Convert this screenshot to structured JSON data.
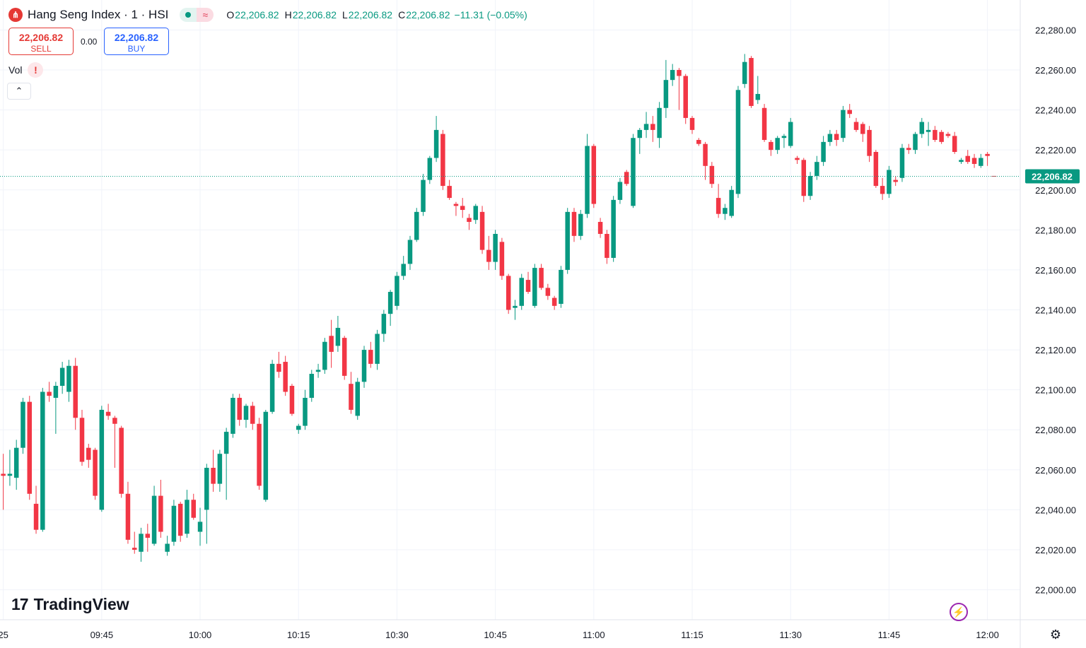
{
  "legend": {
    "symbol": "Hang Seng Index · 1 · HSI",
    "logo_glyph": "⋔",
    "status_icon": "≈",
    "ohlc": {
      "o_label": "O",
      "o": "22,206.82",
      "h_label": "H",
      "h": "22,206.82",
      "l_label": "L",
      "l": "22,206.82",
      "c_label": "C",
      "c": "22,206.82"
    },
    "change": "−11.31 (−0.05%)"
  },
  "trade": {
    "sell_price": "22,206.82",
    "sell_label": "SELL",
    "spread": "0.00",
    "buy_price": "22,206.82",
    "buy_label": "BUY"
  },
  "indicator": {
    "label": "Vol",
    "warning_glyph": "!",
    "collapse_glyph": "⌃"
  },
  "brand": {
    "mark": "17",
    "name": "TradingView"
  },
  "icons": {
    "bolt": "⚡",
    "settings": "⚙"
  },
  "colors": {
    "up": "#089981",
    "down": "#f23645",
    "price_label": "#089981",
    "grid": "#f0f3fa"
  },
  "chart_data": {
    "type": "candlestick",
    "title": "Hang Seng Index · 1 · HSI",
    "interval": "1 minute",
    "grid": true,
    "y_axis": {
      "position": "right",
      "range": [
        21985,
        22295
      ],
      "ticks": [
        "22,000.00",
        "22,020.00",
        "22,040.00",
        "22,060.00",
        "22,080.00",
        "22,100.00",
        "22,120.00",
        "22,140.00",
        "22,160.00",
        "22,180.00",
        "22,200.00",
        "22,220.00",
        "22,240.00",
        "22,260.00",
        "22,280.00"
      ],
      "tick_values": [
        22000,
        22020,
        22040,
        22060,
        22080,
        22100,
        22120,
        22140,
        22160,
        22180,
        22200,
        22220,
        22240,
        22260,
        22280
      ]
    },
    "x_axis": {
      "start_minute": 9.5,
      "end_minute": 165,
      "ticks": [
        "25",
        "09:45",
        "10:00",
        "10:15",
        "10:30",
        "10:45",
        "11:00",
        "11:15",
        "11:30",
        "11:45",
        "12:00"
      ],
      "tick_minutes": [
        10,
        25,
        40,
        55,
        70,
        85,
        100,
        115,
        130,
        145,
        160
      ]
    },
    "last_price": 22206.82,
    "last_price_label": "22,206.82",
    "candles": [
      [
        22058.0,
        22068.0,
        22040.0,
        22057.0
      ],
      [
        22057.0,
        22070.0,
        22052.0,
        22058.0
      ],
      [
        22056.0,
        22075.0,
        22050.0,
        22071.0
      ],
      [
        22071.0,
        22096.0,
        22068.0,
        22094.0
      ],
      [
        22094.0,
        22097.0,
        22045.0,
        22048.0
      ],
      [
        22043.0,
        22052.0,
        22028.0,
        22030.0
      ],
      [
        22030.0,
        22101.0,
        22029.0,
        22099.0
      ],
      [
        22099.0,
        22104.0,
        22094.0,
        22097.0
      ],
      [
        22096.0,
        22104.0,
        22078.0,
        22102.0
      ],
      [
        22102.0,
        22114.0,
        22098.0,
        22111.0
      ],
      [
        22099.0,
        22115.0,
        22094.0,
        22112.0
      ],
      [
        22112.0,
        22116.0,
        22080.0,
        22086.0
      ],
      [
        22086.0,
        22090.0,
        22062.0,
        22064.0
      ],
      [
        22071.0,
        22073.0,
        22061.0,
        22065.0
      ],
      [
        22070.0,
        22071.0,
        22045.0,
        22047.0
      ],
      [
        22040.0,
        22092.0,
        22039.0,
        22090.0
      ],
      [
        22089.0,
        22093.0,
        22085.0,
        22087.0
      ],
      [
        22086.0,
        22087.0,
        22061.0,
        22083.0
      ],
      [
        22081.0,
        22082.0,
        22046.0,
        22048.0
      ],
      [
        22048.0,
        22054.0,
        22023.0,
        22025.0
      ],
      [
        22021.0,
        22029.0,
        22018.0,
        22020.0
      ],
      [
        22019.0,
        22031.0,
        22014.0,
        22028.0
      ],
      [
        22028.0,
        22033.0,
        22019.0,
        22026.0
      ],
      [
        22023.0,
        22052.0,
        22022.0,
        22047.0
      ],
      [
        22047.0,
        22055.0,
        22026.0,
        22029.0
      ],
      [
        22019.0,
        22027.0,
        22017.0,
        22023.0
      ],
      [
        22024.0,
        22045.0,
        22022.0,
        22042.0
      ],
      [
        22043.0,
        22044.0,
        22024.0,
        22027.0
      ],
      [
        22028.0,
        22050.0,
        22026.0,
        22045.0
      ],
      [
        22045.0,
        22048.0,
        22035.0,
        22036.0
      ],
      [
        22029.0,
        22041.0,
        22022.0,
        22034.0
      ],
      [
        22040.0,
        22063.0,
        22023.0,
        22061.0
      ],
      [
        22061.0,
        22070.0,
        22049.0,
        22053.0
      ],
      [
        22053.0,
        22070.0,
        22049.0,
        22068.0
      ],
      [
        22068.0,
        22081.0,
        22045.0,
        22079.0
      ],
      [
        22078.0,
        22098.0,
        22076.0,
        22096.0
      ],
      [
        22096.0,
        22098.0,
        22082.0,
        22085.0
      ],
      [
        22085.0,
        22093.0,
        22081.0,
        22092.0
      ],
      [
        22092.0,
        22094.0,
        22080.0,
        22083.0
      ],
      [
        22083.0,
        22086.0,
        22050.0,
        22052.0
      ],
      [
        22045.0,
        22090.0,
        22044.0,
        22089.0
      ],
      [
        22089.0,
        22115.0,
        22088.0,
        22113.0
      ],
      [
        22113.0,
        22119.0,
        22106.0,
        22109.0
      ],
      [
        22114.0,
        22117.0,
        22097.0,
        22099.0
      ],
      [
        22102.0,
        22103.0,
        22087.0,
        22088.0
      ],
      [
        22080.0,
        22083.0,
        22078.0,
        22082.0
      ],
      [
        22082.0,
        22100.0,
        22080.0,
        22096.0
      ],
      [
        22096.0,
        22110.0,
        22094.0,
        22108.0
      ],
      [
        22109.0,
        22113.0,
        22106.0,
        22110.0
      ],
      [
        22110.0,
        22126.0,
        22108.0,
        22124.0
      ],
      [
        22127.0,
        22135.0,
        22111.0,
        22119.0
      ],
      [
        22122.0,
        22137.0,
        22119.0,
        22131.0
      ],
      [
        22126.0,
        22127.0,
        22105.0,
        22107.0
      ],
      [
        22103.0,
        22109.0,
        22088.0,
        22090.0
      ],
      [
        22087.0,
        22106.0,
        22085.0,
        22104.0
      ],
      [
        22104.0,
        22122.0,
        22101.0,
        22120.0
      ],
      [
        22120.0,
        22124.0,
        22111.0,
        22113.0
      ],
      [
        22113.0,
        22130.0,
        22110.0,
        22128.0
      ],
      [
        22128.0,
        22140.0,
        22124.0,
        22138.0
      ],
      [
        22138.0,
        22150.0,
        22132.0,
        22149.0
      ],
      [
        22142.0,
        22159.0,
        22140.0,
        22157.0
      ],
      [
        22157.0,
        22167.0,
        22155.0,
        22163.0
      ],
      [
        22163.0,
        22177.0,
        22160.0,
        22175.0
      ],
      [
        22175.0,
        22191.0,
        22174.0,
        22189.0
      ],
      [
        22189.0,
        22208.0,
        22187.0,
        22205.0
      ],
      [
        22205.0,
        22217.0,
        22203.0,
        22216.0
      ],
      [
        22216.0,
        22237.0,
        22214.0,
        22230.0
      ],
      [
        22228.0,
        22230.0,
        22200.0,
        22202.0
      ],
      [
        22202.0,
        22205.0,
        22195.0,
        22196.0
      ],
      [
        22193.0,
        22194.0,
        22187.0,
        22192.0
      ],
      [
        22192.0,
        22196.0,
        22186.0,
        22190.0
      ],
      [
        22186.0,
        22188.0,
        22180.0,
        22184.0
      ],
      [
        22185.0,
        22193.0,
        22183.0,
        22192.0
      ],
      [
        22189.0,
        22192.0,
        22168.0,
        22170.0
      ],
      [
        22170.0,
        22177.0,
        22160.0,
        22164.0
      ],
      [
        22164.0,
        22180.0,
        22160.0,
        22178.0
      ],
      [
        22174.0,
        22176.0,
        22155.0,
        22157.0
      ],
      [
        22157.0,
        22158.0,
        22138.0,
        22140.0
      ],
      [
        22141.0,
        22145.0,
        22135.0,
        22142.0
      ],
      [
        22142.0,
        22158.0,
        22140.0,
        22156.0
      ],
      [
        22155.0,
        22159.0,
        22148.0,
        22149.0
      ],
      [
        22142.0,
        22163.0,
        22141.0,
        22161.0
      ],
      [
        22161.0,
        22163.0,
        22150.0,
        22151.0
      ],
      [
        22151.0,
        22153.0,
        22145.0,
        22147.0
      ],
      [
        22146.0,
        22147.0,
        22140.0,
        22142.0
      ],
      [
        22143.0,
        22162.0,
        22141.0,
        22160.0
      ],
      [
        22160.0,
        22191.0,
        22158.0,
        22189.0
      ],
      [
        22189.0,
        22191.0,
        22174.0,
        22177.0
      ],
      [
        22177.0,
        22190.0,
        22175.0,
        22188.0
      ],
      [
        22188.0,
        22228.0,
        22186.0,
        22222.0
      ],
      [
        22222.0,
        22223.0,
        22191.0,
        22193.0
      ],
      [
        22184.0,
        22186.0,
        22176.0,
        22178.0
      ],
      [
        22178.0,
        22180.0,
        22163.0,
        22166.0
      ],
      [
        22166.0,
        22197.0,
        22164.0,
        22195.0
      ],
      [
        22195.0,
        22206.0,
        22193.0,
        22204.0
      ],
      [
        22209.0,
        22210.0,
        22202.0,
        22203.0
      ],
      [
        22192.0,
        22228.0,
        22191.0,
        22226.0
      ],
      [
        22226.0,
        22231.0,
        22218.0,
        22230.0
      ],
      [
        22230.0,
        22239.0,
        22226.0,
        22233.0
      ],
      [
        22233.0,
        22237.0,
        22224.0,
        22230.0
      ],
      [
        22226.0,
        22244.0,
        22221.0,
        22241.0
      ],
      [
        22241.0,
        22265.0,
        22236.0,
        22255.0
      ],
      [
        22255.0,
        22263.0,
        22252.0,
        22260.0
      ],
      [
        22260.0,
        22261.0,
        22240.0,
        22257.0
      ],
      [
        22257.0,
        22258.0,
        22233.0,
        22236.0
      ],
      [
        22236.0,
        22237.0,
        22228.0,
        22230.0
      ],
      [
        22225.0,
        22226.0,
        22222.0,
        22223.0
      ],
      [
        22223.0,
        22224.0,
        22205.0,
        22212.0
      ],
      [
        22212.0,
        22214.0,
        22201.0,
        22203.0
      ],
      [
        22196.0,
        22203.0,
        22186.0,
        22188.0
      ],
      [
        22188.0,
        22193.0,
        22185.0,
        22191.0
      ],
      [
        22187.0,
        22202.0,
        22186.0,
        22200.0
      ],
      [
        22198.0,
        22252.0,
        22196.0,
        22250.0
      ],
      [
        22253.0,
        22268.0,
        22251.0,
        22264.0
      ],
      [
        22266.0,
        22267.0,
        22241.0,
        22242.0
      ],
      [
        22245.0,
        22257.0,
        22243.0,
        22248.0
      ],
      [
        22241.0,
        22243.0,
        22224.0,
        22225.0
      ],
      [
        22224.0,
        22225.0,
        22217.0,
        22220.0
      ],
      [
        22220.0,
        22227.0,
        22218.0,
        22226.0
      ],
      [
        22226.0,
        22228.0,
        22221.0,
        22227.0
      ],
      [
        22222.0,
        22236.0,
        22221.0,
        22234.0
      ],
      [
        22216.0,
        22217.0,
        22213.0,
        22215.0
      ],
      [
        22215.0,
        22216.0,
        22194.0,
        22197.0
      ],
      [
        22197.0,
        22209.0,
        22195.0,
        22207.0
      ],
      [
        22207.0,
        22217.0,
        22205.0,
        22214.0
      ],
      [
        22214.0,
        22227.0,
        22212.0,
        22224.0
      ],
      [
        22224.0,
        22230.0,
        22222.0,
        22228.0
      ],
      [
        22228.0,
        22230.0,
        22222.0,
        22225.0
      ],
      [
        22226.0,
        22242.0,
        22224.0,
        22240.0
      ],
      [
        22240.0,
        22243.0,
        22236.0,
        22238.0
      ],
      [
        22234.0,
        22236.0,
        22229.0,
        22230.0
      ],
      [
        22233.0,
        22234.0,
        22224.0,
        22228.0
      ],
      [
        22230.0,
        22232.0,
        22214.0,
        22217.0
      ],
      [
        22219.0,
        22220.0,
        22201.0,
        22202.0
      ],
      [
        22202.0,
        22206.0,
        22195.0,
        22198.0
      ],
      [
        22198.0,
        22212.0,
        22196.0,
        22210.0
      ],
      [
        22205.0,
        22207.0,
        22202.0,
        22204.0
      ],
      [
        22206.0,
        22223.0,
        22204.0,
        22221.0
      ],
      [
        22221.0,
        22223.0,
        22218.0,
        22220.0
      ],
      [
        22220.0,
        22229.0,
        22218.0,
        22228.0
      ],
      [
        22228.0,
        22236.0,
        22226.0,
        22234.0
      ],
      [
        22229.0,
        22234.0,
        22222.0,
        22230.0
      ],
      [
        22230.0,
        22232.0,
        22224.0,
        22225.0
      ],
      [
        22229.0,
        22230.0,
        22223.0,
        22224.0
      ],
      [
        22228.0,
        22229.0,
        22226.0,
        22227.0
      ],
      [
        22227.0,
        22229.0,
        22218.0,
        22219.0
      ],
      [
        22214.0,
        22216.0,
        22213.0,
        22215.0
      ],
      [
        22217.0,
        22220.0,
        22213.0,
        22214.0
      ],
      [
        22216.0,
        22218.0,
        22211.0,
        22213.0
      ],
      [
        22212.0,
        22218.0,
        22211.0,
        22216.0
      ],
      [
        22218.0,
        22219.0,
        22212.0,
        22217.0
      ],
      [
        22207.0,
        22207.0,
        22206.8,
        22206.8
      ]
    ]
  }
}
